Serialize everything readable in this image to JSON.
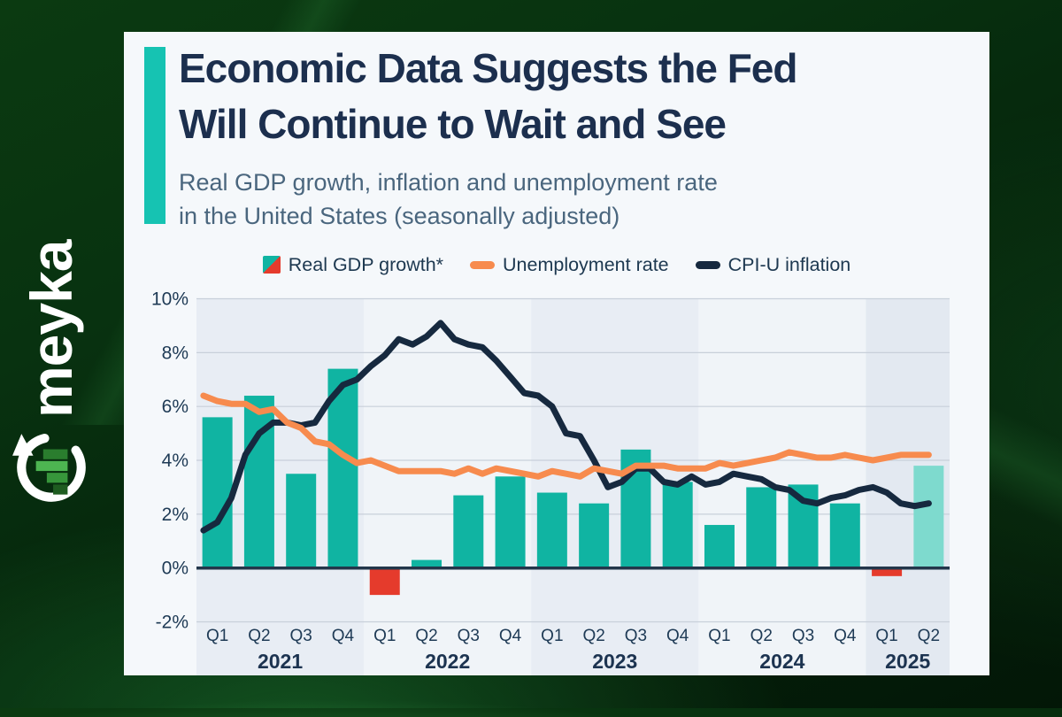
{
  "logo": {
    "text": "meyka"
  },
  "header": {
    "title_line1": "Economic Data Suggests the Fed",
    "title_line2": "Will Continue to Wait and See",
    "subtitle_line1": "Real GDP growth, inflation and unemployment rate",
    "subtitle_line2": "in the United States (seasonally adjusted)"
  },
  "legend": {
    "items": [
      {
        "label": "Real GDP growth*",
        "swatch": "split-square",
        "colors": [
          "#10b4a2",
          "#e53b2c"
        ]
      },
      {
        "label": "Unemployment rate",
        "swatch": "dash",
        "colors": [
          "#f78b4e"
        ]
      },
      {
        "label": "CPI-U inflation",
        "swatch": "dash",
        "colors": [
          "#16293f"
        ]
      }
    ]
  },
  "chart_data": {
    "type": "bar+line combo",
    "unit": "%",
    "y_axis": {
      "ticks": [
        "10%",
        "8%",
        "6%",
        "4%",
        "2%",
        "0%",
        "-2%"
      ],
      "tick_values": [
        10,
        8,
        6,
        4,
        2,
        0,
        -2
      ],
      "min": -2,
      "max": 10,
      "gridline_color": "#c8d0da",
      "zero_line_color": "#22364a"
    },
    "x_axis": {
      "quarter_labels": [
        "Q1",
        "Q2",
        "Q3",
        "Q4",
        "Q1",
        "Q2",
        "Q3",
        "Q4",
        "Q1",
        "Q2",
        "Q3",
        "Q4",
        "Q1",
        "Q2",
        "Q3",
        "Q4",
        "Q1",
        "Q2"
      ],
      "year_groups": [
        {
          "label": "2021",
          "quarters": 4,
          "band_color": "#e8edf4"
        },
        {
          "label": "2022",
          "quarters": 4,
          "band_color": "#f0f4f8"
        },
        {
          "label": "2023",
          "quarters": 4,
          "band_color": "#e8edf4"
        },
        {
          "label": "2024",
          "quarters": 4,
          "band_color": "#f0f4f8"
        },
        {
          "label": "2025",
          "quarters": 2,
          "band_color": "#e3e9f1"
        }
      ]
    },
    "bar_series": {
      "name": "Real GDP growth*",
      "frequency": "quarterly",
      "values": [
        5.6,
        6.4,
        3.5,
        7.4,
        -1.0,
        0.3,
        2.7,
        3.4,
        2.8,
        2.4,
        4.4,
        3.2,
        1.6,
        3.0,
        3.1,
        2.4,
        -0.3,
        3.8
      ],
      "positive_color": "#10b4a2",
      "negative_color": "#e53b2c",
      "highlight_last": true,
      "highlight_color": "#7edace"
    },
    "line_series": [
      {
        "name": "Unemployment rate",
        "color": "#f78b4e",
        "frequency": "monthly",
        "start_month": "2021-01",
        "values": [
          6.4,
          6.2,
          6.1,
          6.1,
          5.8,
          5.9,
          5.4,
          5.2,
          4.7,
          4.6,
          4.2,
          3.9,
          4.0,
          3.8,
          3.6,
          3.6,
          3.6,
          3.6,
          3.5,
          3.7,
          3.5,
          3.7,
          3.6,
          3.5,
          3.4,
          3.6,
          3.5,
          3.4,
          3.7,
          3.6,
          3.5,
          3.8,
          3.8,
          3.8,
          3.7,
          3.7,
          3.7,
          3.9,
          3.8,
          3.9,
          4.0,
          4.1,
          4.3,
          4.2,
          4.1,
          4.1,
          4.2,
          4.1,
          4.0,
          4.1,
          4.2,
          4.2,
          4.2
        ]
      },
      {
        "name": "CPI-U inflation",
        "color": "#16293f",
        "frequency": "monthly",
        "start_month": "2021-01",
        "values": [
          1.4,
          1.7,
          2.6,
          4.2,
          5.0,
          5.4,
          5.4,
          5.3,
          5.4,
          6.2,
          6.8,
          7.0,
          7.5,
          7.9,
          8.5,
          8.3,
          8.6,
          9.1,
          8.5,
          8.3,
          8.2,
          7.7,
          7.1,
          6.5,
          6.4,
          6.0,
          5.0,
          4.9,
          4.0,
          3.0,
          3.2,
          3.7,
          3.7,
          3.2,
          3.1,
          3.4,
          3.1,
          3.2,
          3.5,
          3.4,
          3.3,
          3.0,
          2.9,
          2.5,
          2.4,
          2.6,
          2.7,
          2.9,
          3.0,
          2.8,
          2.4,
          2.3,
          2.4
        ]
      }
    ]
  }
}
